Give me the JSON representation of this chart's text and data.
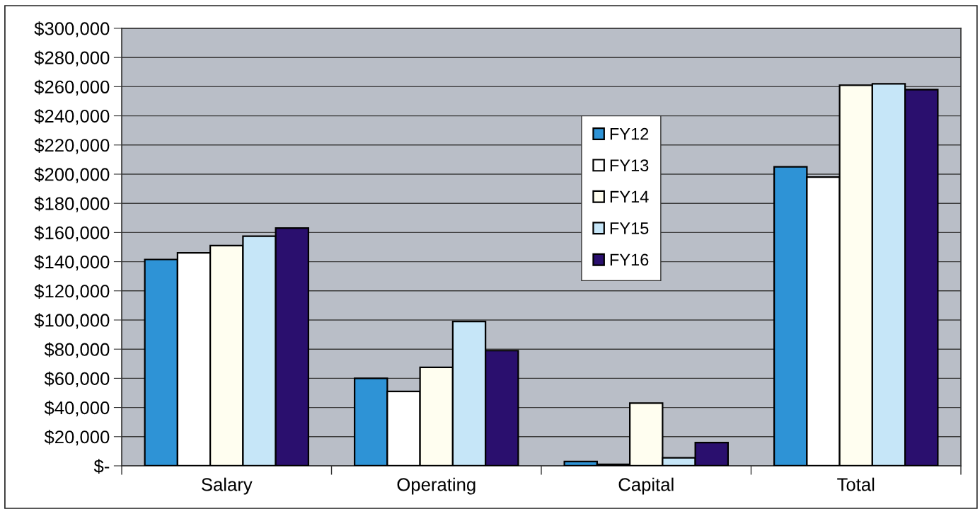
{
  "chart_data": {
    "type": "bar",
    "categories": [
      "Salary",
      "Operating",
      "Capital",
      "Total"
    ],
    "series": [
      {
        "name": "FY12",
        "color": "#2e93d6",
        "values": [
          141500,
          60000,
          3000,
          205000
        ]
      },
      {
        "name": "FY13",
        "color": "#ffffff",
        "values": [
          146000,
          51000,
          1000,
          198000
        ]
      },
      {
        "name": "FY14",
        "color": "#fffef0",
        "values": [
          151000,
          67500,
          43000,
          261000
        ]
      },
      {
        "name": "FY15",
        "color": "#c6e6f8",
        "values": [
          157500,
          99000,
          5500,
          262000
        ]
      },
      {
        "name": "FY16",
        "color": "#2a0f6e",
        "values": [
          163000,
          79000,
          16000,
          258000
        ]
      }
    ],
    "ylim": [
      0,
      300000
    ],
    "yticks": [
      {
        "value": 0,
        "label": "$-"
      },
      {
        "value": 20000,
        "label": "$20,000"
      },
      {
        "value": 40000,
        "label": "$40,000"
      },
      {
        "value": 60000,
        "label": "$60,000"
      },
      {
        "value": 80000,
        "label": "$80,000"
      },
      {
        "value": 100000,
        "label": "$100,000"
      },
      {
        "value": 120000,
        "label": "$120,000"
      },
      {
        "value": 140000,
        "label": "$140,000"
      },
      {
        "value": 160000,
        "label": "$160,000"
      },
      {
        "value": 180000,
        "label": "$180,000"
      },
      {
        "value": 200000,
        "label": "$200,000"
      },
      {
        "value": 220000,
        "label": "$220,000"
      },
      {
        "value": 240000,
        "label": "$240,000"
      },
      {
        "value": 260000,
        "label": "$260,000"
      },
      {
        "value": 280000,
        "label": "$280,000"
      },
      {
        "value": 300000,
        "label": "$300,000"
      }
    ],
    "grid": "y",
    "legend": "top"
  }
}
